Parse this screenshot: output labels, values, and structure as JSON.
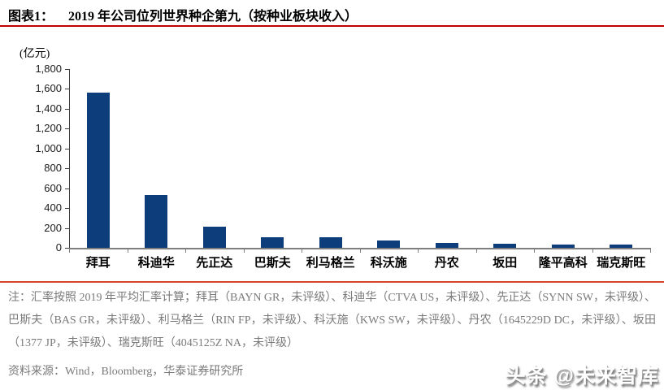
{
  "header": {
    "fig_label": "图表1：",
    "title": "2019 年公司位列世界种企第九（按种业板块收入）"
  },
  "chart_data": {
    "type": "bar",
    "title": "2019 年公司位列世界种企第九（按种业板块收入）",
    "unit_label": "(亿元)",
    "categories": [
      "拜耳",
      "科迪华",
      "先正达",
      "巴斯夫",
      "利马格兰",
      "科沃施",
      "丹农",
      "坂田",
      "隆平高科",
      "瑞克斯旺"
    ],
    "values": [
      1560,
      530,
      215,
      105,
      110,
      70,
      47,
      41,
      35,
      30
    ],
    "xlabel": "",
    "ylabel": "(亿元)",
    "ylim": [
      0,
      1800
    ],
    "ytick_step": 200,
    "ytick_labels": [
      "1,800",
      "1,600",
      "1,400",
      "1,200",
      "1,000",
      "800",
      "600",
      "400",
      "200",
      "0"
    ],
    "grid": false,
    "legend_position": "none"
  },
  "notes": {
    "note": "注：汇率按照 2019 年平均汇率计算；拜耳（BAYN GR，未评级）、科迪华（CTVA US，未评级）、先正达（SYNN SW，未评级）、巴斯夫（BAS GR，未评级）、利马格兰（RIN FP，未评级）、科沃施（KWS SW，未评级）、丹农（1645229D DC，未评级）、坂田（1377 JP，未评级）、瑞克斯旺（4045125Z NA，未评级）",
    "source": "资料来源：Wind，Bloomberg，华泰证券研究所"
  },
  "watermark": {
    "text": "头条 @未来智库"
  },
  "colors": {
    "title_underline_red": "#c00000",
    "notes_divider_red": "#d6432b",
    "bar_navy": "#0e3d7b",
    "x_axis_gray": "#7f7f7f",
    "y_axis_dark": "#3d3d3d",
    "note_gray": "#7a7a7a"
  }
}
